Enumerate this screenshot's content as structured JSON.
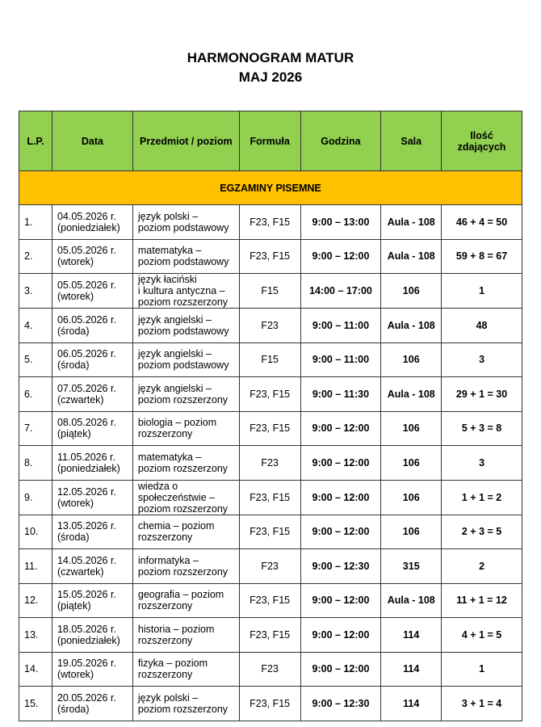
{
  "title": [
    "HARMONOGRAM MATUR",
    "MAJ 2026"
  ],
  "headers": [
    "L.P.",
    "Data",
    "Przedmiot / poziom",
    "Formuła",
    "Godzina",
    "Sala",
    "Ilość zdających"
  ],
  "section": "EGZAMINY PISEMNE",
  "colors": {
    "header": "#92d050",
    "section": "#ffc000"
  },
  "rows": [
    [
      "1.",
      "04.05.2026 r.",
      "(poniedziałek)",
      "język polski –|poziom podstawowy",
      "F23, F15",
      "9:00 – 13:00",
      "Aula - 108",
      "46 + 4 = 50"
    ],
    [
      "2.",
      "05.05.2026 r.",
      "(wtorek)",
      "matematyka –|poziom podstawowy",
      "F23, F15",
      "9:00 – 12:00",
      "Aula - 108",
      "59 + 8 = 67"
    ],
    [
      "3.",
      "05.05.2026 r.",
      "(wtorek)",
      "język łaciński|i kultura antyczna –|poziom rozszerzony",
      "F15",
      "14:00 – 17:00",
      "106",
      "1"
    ],
    [
      "4.",
      "06.05.2026 r.",
      "(środa)",
      "język angielski –|poziom podstawowy",
      "F23",
      "9:00 – 11:00",
      "Aula - 108",
      "48"
    ],
    [
      "5.",
      "06.05.2026 r.",
      "(środa)",
      "język angielski –|poziom podstawowy",
      "F15",
      "9:00 – 11:00",
      "106",
      "3"
    ],
    [
      "6.",
      "07.05.2026 r.",
      "(czwartek)",
      "język angielski –|poziom rozszerzony",
      "F23, F15",
      "9:00 – 11:30",
      "Aula - 108",
      "29 + 1 = 30"
    ],
    [
      "7.",
      "08.05.2026 r.",
      "(piątek)",
      "biologia – poziom|rozszerzony",
      "F23, F15",
      "9:00 – 12:00",
      "106",
      "5 + 3 = 8"
    ],
    [
      "8.",
      "11.05.2026 r.",
      "(poniedziałek)",
      "matematyka –|poziom rozszerzony",
      "F23",
      "9:00 – 12:00",
      "106",
      "3"
    ],
    [
      "9.",
      "12.05.2026 r.",
      "(wtorek)",
      "wiedza o|społeczeństwie –|poziom rozszerzony",
      "F23, F15",
      "9:00 – 12:00",
      "106",
      "1 + 1 = 2"
    ],
    [
      "10.",
      "13.05.2026 r.",
      "(środa)",
      "chemia – poziom|rozszerzony",
      "F23, F15",
      "9:00 – 12:00",
      "106",
      "2 + 3 = 5"
    ],
    [
      "11.",
      "14.05.2026 r.",
      "(czwartek)",
      "informatyka –|poziom rozszerzony",
      "F23",
      "9:00 – 12:30",
      "315",
      "2"
    ],
    [
      "12.",
      "15.05.2026 r.",
      "(piątek)",
      "geografia – poziom|rozszerzony",
      "F23, F15",
      "9:00 – 12:00",
      "Aula - 108",
      "11 + 1 = 12"
    ],
    [
      "13.",
      "18.05.2026 r.",
      "(poniedziałek)",
      "historia – poziom|rozszerzony",
      "F23, F15",
      "9:00 – 12:00",
      "114",
      "4 + 1 = 5"
    ],
    [
      "14.",
      "19.05.2026 r.",
      "(wtorek)",
      "fizyka – poziom|rozszerzony",
      "F23",
      "9:00 – 12:00",
      "114",
      "1"
    ],
    [
      "15.",
      "20.05.2026 r.",
      "(środa)",
      "język polski –|poziom rozszerzony",
      "F23, F15",
      "9:00 – 12:30",
      "114",
      "3 + 1 = 4"
    ]
  ]
}
